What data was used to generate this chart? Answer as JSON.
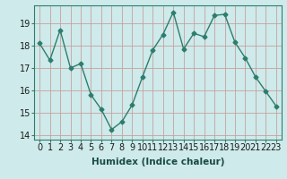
{
  "x": [
    0,
    1,
    2,
    3,
    4,
    5,
    6,
    7,
    8,
    9,
    10,
    11,
    12,
    13,
    14,
    15,
    16,
    17,
    18,
    19,
    20,
    21,
    22,
    23
  ],
  "y": [
    18.1,
    17.35,
    18.7,
    17.0,
    17.2,
    15.8,
    15.15,
    14.25,
    14.6,
    15.35,
    16.6,
    17.8,
    18.5,
    19.5,
    17.85,
    18.55,
    18.4,
    19.35,
    19.4,
    18.15,
    17.45,
    16.6,
    15.95,
    15.3
  ],
  "line_color": "#2d7d6e",
  "marker": "D",
  "marker_size": 2.5,
  "bg_color": "#ceeaea",
  "grid_color": "#c8a0a0",
  "xlabel": "Humidex (Indice chaleur)",
  "ylim": [
    13.8,
    19.8
  ],
  "yticks": [
    14,
    15,
    16,
    17,
    18,
    19
  ],
  "xticks": [
    0,
    1,
    2,
    3,
    4,
    5,
    6,
    7,
    8,
    9,
    10,
    11,
    12,
    13,
    14,
    15,
    16,
    17,
    18,
    19,
    20,
    21,
    22,
    23
  ],
  "xlabel_fontsize": 7.5,
  "tick_fontsize": 7.0,
  "linewidth": 1.0
}
